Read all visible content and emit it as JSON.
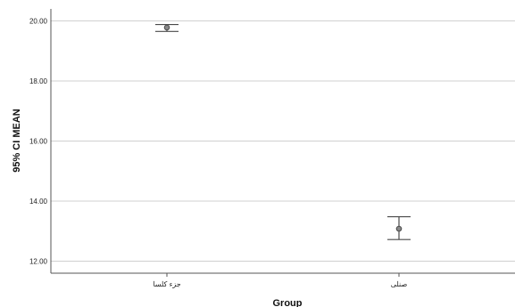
{
  "chart_data": {
    "type": "errorbar",
    "categories": [
      "جزء کلسا",
      "صنلی"
    ],
    "series": [
      {
        "mean": [
          19.78,
          13.08
        ],
        "ci_lower": [
          19.65,
          12.72
        ],
        "ci_upper": [
          19.88,
          13.48
        ]
      }
    ],
    "xlabel": "Group",
    "ylabel": "95% CI MEAN",
    "ylim": [
      11.6,
      20.4
    ],
    "yticks": [
      "12.00",
      "14.00",
      "16.00",
      "18.00",
      "20.00"
    ],
    "grid": "horizontal"
  },
  "colors": {
    "grid": "#d0d0d0",
    "axis": "#555555",
    "marker": "#4a4a4a"
  }
}
